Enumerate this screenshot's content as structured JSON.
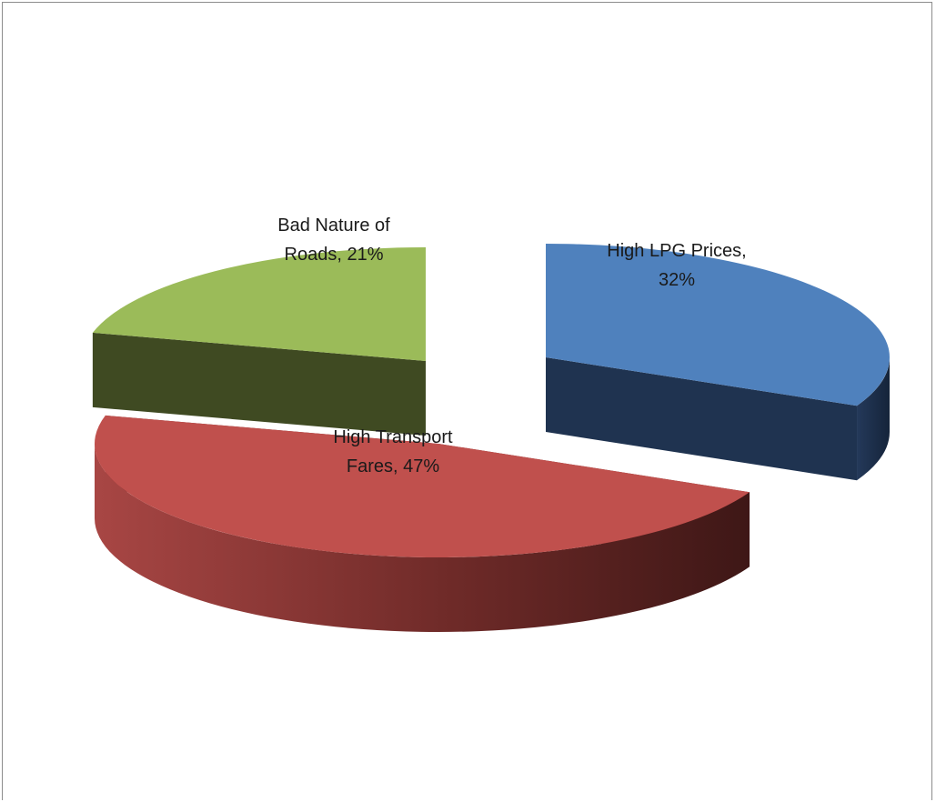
{
  "chart_data": {
    "type": "pie",
    "title": "",
    "style": "3d-exploded",
    "slices": [
      {
        "category": "High LPG Prices",
        "value": 32,
        "label_lines": [
          "High LPG Prices,",
          "32%"
        ],
        "color": "#4f81bd",
        "side_color": "#1f3350",
        "exploded": true
      },
      {
        "category": "High Transport Fares",
        "value": 47,
        "label_lines": [
          "High Transport",
          "Fares, 47%"
        ],
        "color": "#c0504d",
        "side_color": "#6b2624",
        "exploded": false
      },
      {
        "category": "Bad Nature of Roads",
        "value": 21,
        "label_lines": [
          "Bad Nature of",
          "Roads, 21%"
        ],
        "color": "#9bbb59",
        "side_color": "#3f4a22",
        "exploded": false
      }
    ]
  }
}
